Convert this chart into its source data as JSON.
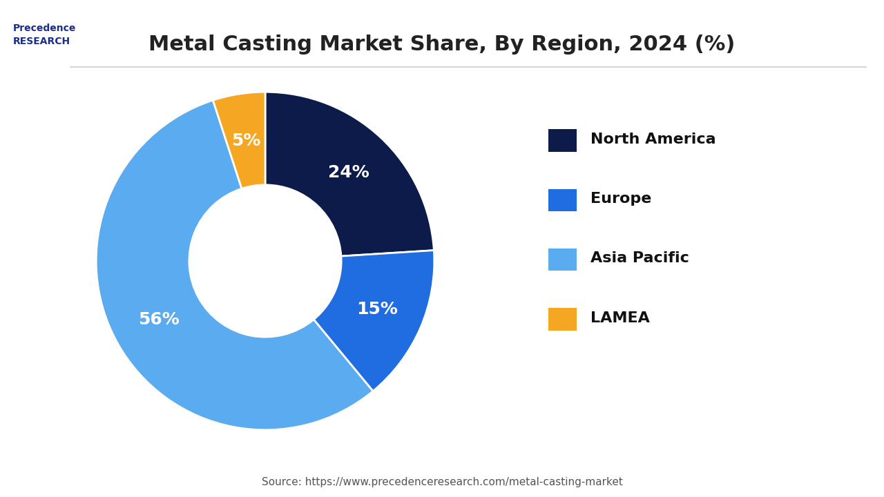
{
  "title": "Metal Casting Market Share, By Region, 2024 (%)",
  "labels": [
    "North America",
    "Europe",
    "Asia Pacific",
    "LAMEA"
  ],
  "values": [
    24,
    15,
    56,
    5
  ],
  "colors": [
    "#0d1b4b",
    "#1f6de0",
    "#5aabf0",
    "#f5a623"
  ],
  "label_colors": [
    "white",
    "white",
    "white",
    "white"
  ],
  "source": "Source: https://www.precedenceresearch.com/metal-casting-market",
  "background_color": "#ffffff",
  "title_fontsize": 22,
  "legend_fontsize": 16,
  "pct_fontsize": 18
}
